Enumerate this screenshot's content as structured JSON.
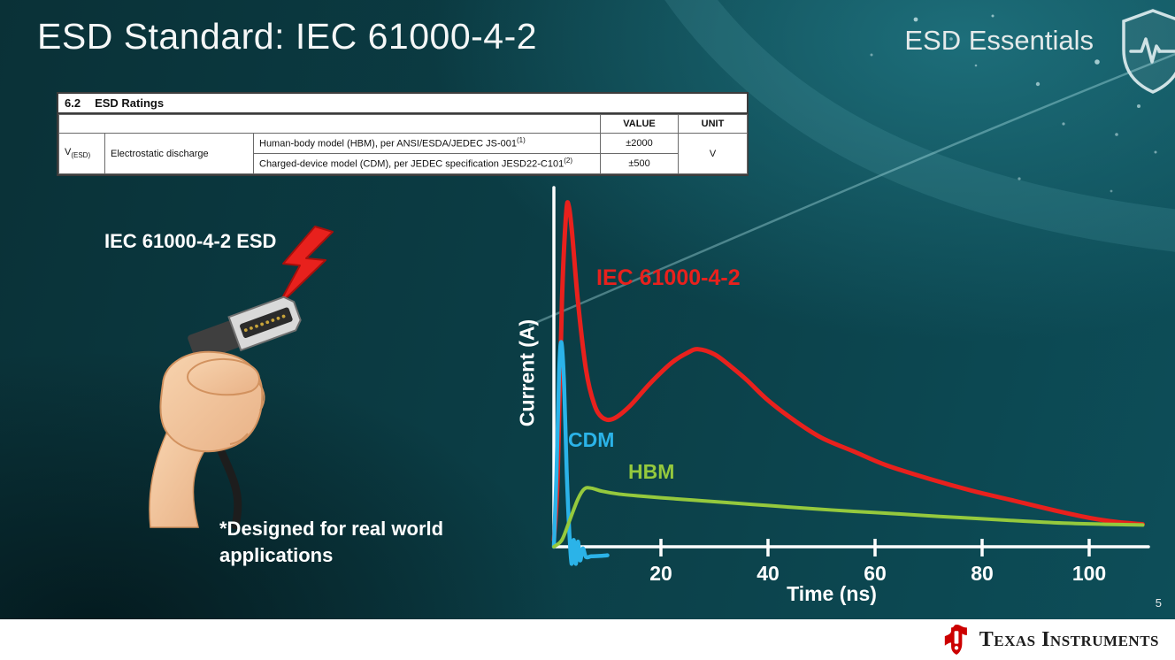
{
  "slide": {
    "title": "ESD Standard: IEC 61000-4-2",
    "brand": "ESD Essentials",
    "page_number": "5"
  },
  "icons": {
    "shield": "shield-pulse-icon",
    "bolt": "lightning-bolt-icon",
    "ti_logo": "ti-logo-icon"
  },
  "colors": {
    "background_teal": "#0c414a",
    "iec_red": "#e8211d",
    "cdm_cyan": "#2bb3e8",
    "hbm_green": "#95c93d",
    "footer_white": "#ffffff"
  },
  "ratings_table": {
    "section": "6.2",
    "section_title": "ESD Ratings",
    "value_header": "VALUE",
    "unit_header": "UNIT",
    "symbol": "V",
    "symbol_sub": "(ESD)",
    "parameter": "Electrostatic discharge",
    "rows": [
      {
        "description": "Human-body model (HBM), per ANSI/ESDA/JEDEC JS-001",
        "description_sup": "(1)",
        "value": "±2000"
      },
      {
        "description": "Charged-device model (CDM), per JEDEC specification JESD22-C101",
        "description_sup": "(2)",
        "value": "±500"
      }
    ],
    "unit": "V"
  },
  "illustration": {
    "label": "IEC 61000-4-2 ESD",
    "footnote": "*Designed for real world\napplications"
  },
  "footer": {
    "logo_text": "Texas Instruments"
  },
  "chart_data": {
    "type": "line",
    "xlabel": "Time (ns)",
    "ylabel": "Current (A)",
    "xlim": [
      0,
      110
    ],
    "x_ticks": [
      20,
      40,
      60,
      80,
      100
    ],
    "y_axis_ticks": "none (unlabeled axis; y values are relative amplitude 0-1)",
    "series": [
      {
        "name": "IEC 61000-4-2",
        "color": "#e8211d",
        "points": [
          [
            0,
            0.02
          ],
          [
            0.7,
            0.2
          ],
          [
            1.5,
            0.72
          ],
          [
            2.3,
            0.98
          ],
          [
            2.8,
            1.0
          ],
          [
            3.4,
            0.92
          ],
          [
            4.5,
            0.72
          ],
          [
            6,
            0.52
          ],
          [
            7.5,
            0.42
          ],
          [
            9,
            0.38
          ],
          [
            11,
            0.375
          ],
          [
            14,
            0.41
          ],
          [
            18,
            0.48
          ],
          [
            22,
            0.54
          ],
          [
            25,
            0.57
          ],
          [
            27,
            0.58
          ],
          [
            30,
            0.565
          ],
          [
            33,
            0.53
          ],
          [
            36,
            0.49
          ],
          [
            40,
            0.43
          ],
          [
            45,
            0.37
          ],
          [
            50,
            0.32
          ],
          [
            56,
            0.28
          ],
          [
            62,
            0.24
          ],
          [
            70,
            0.2
          ],
          [
            78,
            0.165
          ],
          [
            86,
            0.135
          ],
          [
            94,
            0.105
          ],
          [
            100,
            0.085
          ],
          [
            105,
            0.073
          ],
          [
            110,
            0.066
          ]
        ]
      },
      {
        "name": "CDM",
        "color": "#2bb3e8",
        "points": [
          [
            0,
            0.0
          ],
          [
            0.5,
            0.22
          ],
          [
            1.0,
            0.52
          ],
          [
            1.4,
            0.6
          ],
          [
            1.9,
            0.48
          ],
          [
            2.4,
            0.22
          ],
          [
            2.9,
            0.04
          ],
          [
            3.3,
            -0.05
          ],
          [
            3.7,
            0.02
          ],
          [
            4.1,
            -0.05
          ],
          [
            4.5,
            0.015
          ],
          [
            4.9,
            -0.04
          ],
          [
            5.4,
            -0.005
          ],
          [
            6,
            -0.03
          ],
          [
            7,
            -0.028
          ],
          [
            8.5,
            -0.027
          ],
          [
            10,
            -0.025
          ]
        ]
      },
      {
        "name": "HBM",
        "color": "#95c93d",
        "points": [
          [
            0,
            0.0
          ],
          [
            1.5,
            0.02
          ],
          [
            3,
            0.08
          ],
          [
            4.5,
            0.14
          ],
          [
            5.7,
            0.17
          ],
          [
            7,
            0.172
          ],
          [
            9,
            0.163
          ],
          [
            12,
            0.155
          ],
          [
            16,
            0.149
          ],
          [
            20,
            0.144
          ],
          [
            26,
            0.137
          ],
          [
            32,
            0.13
          ],
          [
            40,
            0.121
          ],
          [
            48,
            0.112
          ],
          [
            56,
            0.104
          ],
          [
            64,
            0.097
          ],
          [
            72,
            0.089
          ],
          [
            80,
            0.082
          ],
          [
            88,
            0.075
          ],
          [
            96,
            0.069
          ],
          [
            103,
            0.066
          ],
          [
            110,
            0.064
          ]
        ]
      }
    ]
  }
}
